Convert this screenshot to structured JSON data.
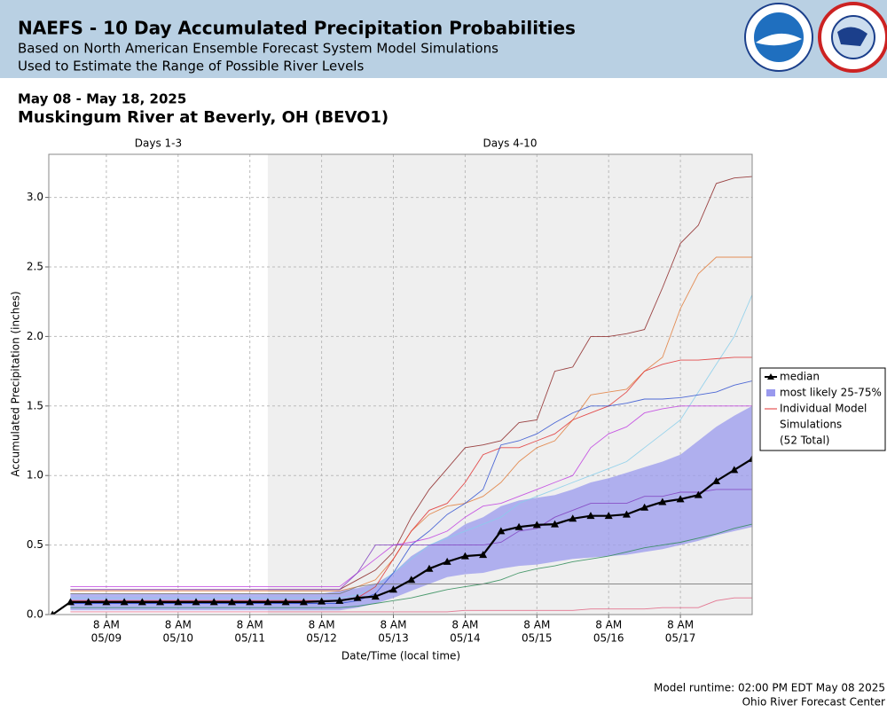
{
  "chart_data": {
    "type": "line",
    "title": "NAEFS - 10 Day Accumulated Precipitation Probabilities",
    "subtitle": [
      "Based on North American Ensemble Forecast System Model Simulations",
      "Used to Estimate the Range of Possible River Levels"
    ],
    "date_range": "May 08 - May 18, 2025",
    "location": "Muskingum River at Beverly, OH (BEVO1)",
    "periods": [
      {
        "label": "Days 1-3",
        "start": "2025-05-08T12:45",
        "end": "2025-05-11T14:00"
      },
      {
        "label": "Days 4-10",
        "start": "2025-05-11T14:00",
        "end": "2025-05-18T08:00",
        "shaded": true
      }
    ],
    "x_label": "Date/Time (local time)",
    "y_label": "Accumulated Precipitation (inches)",
    "xlim": [
      "2025-05-08T12:45",
      "2025-05-18T08:00"
    ],
    "xticks": [
      {
        "value": "2025-05-09T08:00",
        "label": "8 AM",
        "date": "05/09"
      },
      {
        "value": "2025-05-10T08:00",
        "label": "8 AM",
        "date": "05/10"
      },
      {
        "value": "2025-05-11T08:00",
        "label": "8 AM",
        "date": "05/11"
      },
      {
        "value": "2025-05-12T08:00",
        "label": "8 AM",
        "date": "05/12"
      },
      {
        "value": "2025-05-13T08:00",
        "label": "8 AM",
        "date": "05/13"
      },
      {
        "value": "2025-05-14T08:00",
        "label": "8 AM",
        "date": "05/14"
      },
      {
        "value": "2025-05-15T08:00",
        "label": "8 AM",
        "date": "05/15"
      },
      {
        "value": "2025-05-16T08:00",
        "label": "8 AM",
        "date": "05/16"
      },
      {
        "value": "2025-05-17T08:00",
        "label": "8 AM",
        "date": "05/17"
      }
    ],
    "ylim": [
      0,
      3.31
    ],
    "yticks": [
      {
        "value": 0,
        "label": "0.0"
      },
      0.5,
      {
        "value": 1,
        "label": "1.0"
      },
      1.5,
      {
        "value": 2,
        "label": "2.0"
      },
      2.5,
      {
        "value": 3,
        "label": "3.0"
      }
    ],
    "grid": true,
    "x": [
      "2025-05-08T14:00",
      "2025-05-08T20:00",
      "2025-05-09T02:00",
      "2025-05-09T08:00",
      "2025-05-09T14:00",
      "2025-05-09T20:00",
      "2025-05-10T02:00",
      "2025-05-10T08:00",
      "2025-05-10T14:00",
      "2025-05-10T20:00",
      "2025-05-11T02:00",
      "2025-05-11T08:00",
      "2025-05-11T14:00",
      "2025-05-11T20:00",
      "2025-05-12T02:00",
      "2025-05-12T08:00",
      "2025-05-12T14:00",
      "2025-05-12T20:00",
      "2025-05-13T02:00",
      "2025-05-13T08:00",
      "2025-05-13T14:00",
      "2025-05-13T20:00",
      "2025-05-14T02:00",
      "2025-05-14T08:00",
      "2025-05-14T14:00",
      "2025-05-14T20:00",
      "2025-05-15T02:00",
      "2025-05-15T08:00",
      "2025-05-15T14:00",
      "2025-05-15T20:00",
      "2025-05-16T02:00",
      "2025-05-16T08:00",
      "2025-05-16T14:00",
      "2025-05-16T20:00",
      "2025-05-17T02:00",
      "2025-05-17T08:00",
      "2025-05-17T14:00",
      "2025-05-17T20:00",
      "2025-05-18T02:00",
      "2025-05-18T08:00"
    ],
    "series": [
      {
        "name": "median",
        "color": "#000000",
        "values": [
          0,
          0.09,
          0.09,
          0.09,
          0.09,
          0.09,
          0.09,
          0.09,
          0.09,
          0.09,
          0.09,
          0.09,
          0.09,
          0.09,
          0.09,
          0.095,
          0.1,
          0.12,
          0.13,
          0.18,
          0.25,
          0.33,
          0.38,
          0.42,
          0.43,
          0.6,
          0.63,
          0.645,
          0.65,
          0.69,
          0.71,
          0.71,
          0.72,
          0.77,
          0.81,
          0.83,
          0.86,
          0.96,
          1.04,
          1.12
        ]
      }
    ],
    "band": {
      "name": "most likely 25-75%",
      "color": "#9999ee",
      "lower": [
        null,
        0.03,
        0.03,
        0.03,
        0.03,
        0.03,
        0.03,
        0.03,
        0.03,
        0.03,
        0.03,
        0.03,
        0.03,
        0.03,
        0.03,
        0.03,
        0.03,
        0.05,
        0.08,
        0.12,
        0.17,
        0.22,
        0.27,
        0.29,
        0.3,
        0.33,
        0.35,
        0.36,
        0.38,
        0.4,
        0.41,
        0.42,
        0.43,
        0.45,
        0.47,
        0.5,
        0.53,
        0.57,
        0.6,
        0.63
      ],
      "upper": [
        null,
        0.15,
        0.15,
        0.15,
        0.15,
        0.15,
        0.15,
        0.15,
        0.15,
        0.15,
        0.15,
        0.15,
        0.15,
        0.15,
        0.15,
        0.15,
        0.17,
        0.19,
        0.22,
        0.3,
        0.42,
        0.5,
        0.56,
        0.65,
        0.7,
        0.78,
        0.82,
        0.84,
        0.86,
        0.9,
        0.95,
        0.98,
        1.02,
        1.06,
        1.1,
        1.15,
        1.25,
        1.35,
        1.43,
        1.5
      ]
    },
    "simulations_label": [
      "Individual Model",
      "Simulations",
      "(52 Total)"
    ],
    "simulations": [
      {
        "color": "#8b2323",
        "values": [
          null,
          0.18,
          0.18,
          0.18,
          0.18,
          0.18,
          0.18,
          0.18,
          0.18,
          0.18,
          0.18,
          0.18,
          0.18,
          0.18,
          0.18,
          0.18,
          0.18,
          0.25,
          0.32,
          0.45,
          0.7,
          0.9,
          1.05,
          1.2,
          1.22,
          1.25,
          1.38,
          1.4,
          1.75,
          1.78,
          2.0,
          2.0,
          2.02,
          2.05,
          2.35,
          2.67,
          2.8,
          3.1,
          3.14,
          3.15
        ]
      },
      {
        "color": "#e07b39",
        "values": [
          null,
          0.17,
          0.17,
          0.17,
          0.17,
          0.17,
          0.17,
          0.17,
          0.17,
          0.17,
          0.17,
          0.17,
          0.17,
          0.17,
          0.17,
          0.17,
          0.17,
          0.2,
          0.25,
          0.4,
          0.6,
          0.72,
          0.78,
          0.8,
          0.85,
          0.95,
          1.1,
          1.2,
          1.25,
          1.4,
          1.58,
          1.6,
          1.62,
          1.75,
          1.85,
          2.2,
          2.45,
          2.57,
          2.57,
          2.57
        ]
      },
      {
        "color": "#87ceeb",
        "values": [
          null,
          0.12,
          0.12,
          0.12,
          0.12,
          0.12,
          0.12,
          0.12,
          0.12,
          0.12,
          0.12,
          0.12,
          0.12,
          0.12,
          0.12,
          0.12,
          0.12,
          0.14,
          0.2,
          0.3,
          0.4,
          0.5,
          0.55,
          0.6,
          0.65,
          0.7,
          0.8,
          0.85,
          0.9,
          0.95,
          1.0,
          1.05,
          1.1,
          1.2,
          1.3,
          1.4,
          1.6,
          1.8,
          2.0,
          2.3
        ]
      },
      {
        "color": "#e03030",
        "values": [
          null,
          0.1,
          0.1,
          0.1,
          0.1,
          0.1,
          0.1,
          0.1,
          0.1,
          0.1,
          0.1,
          0.1,
          0.1,
          0.1,
          0.1,
          0.1,
          0.1,
          0.12,
          0.2,
          0.4,
          0.6,
          0.75,
          0.8,
          0.95,
          1.15,
          1.2,
          1.2,
          1.25,
          1.3,
          1.4,
          1.45,
          1.5,
          1.6,
          1.75,
          1.8,
          1.83,
          1.83,
          1.84,
          1.85,
          1.85
        ]
      },
      {
        "color": "#3050d0",
        "values": [
          null,
          0.08,
          0.08,
          0.08,
          0.08,
          0.08,
          0.08,
          0.08,
          0.08,
          0.08,
          0.08,
          0.08,
          0.08,
          0.08,
          0.08,
          0.08,
          0.08,
          0.1,
          0.15,
          0.3,
          0.5,
          0.6,
          0.72,
          0.8,
          0.9,
          1.22,
          1.25,
          1.3,
          1.38,
          1.45,
          1.5,
          1.5,
          1.52,
          1.55,
          1.55,
          1.56,
          1.58,
          1.6,
          1.65,
          1.68
        ]
      },
      {
        "color": "#c040e0",
        "values": [
          null,
          0.2,
          0.2,
          0.2,
          0.2,
          0.2,
          0.2,
          0.2,
          0.2,
          0.2,
          0.2,
          0.2,
          0.2,
          0.2,
          0.2,
          0.2,
          0.2,
          0.3,
          0.4,
          0.5,
          0.52,
          0.55,
          0.6,
          0.7,
          0.78,
          0.8,
          0.85,
          0.9,
          0.95,
          1.0,
          1.2,
          1.3,
          1.35,
          1.45,
          1.48,
          1.5,
          1.5,
          1.5,
          1.5,
          1.5
        ]
      },
      {
        "color": "#2e8b57",
        "values": [
          null,
          0.05,
          0.05,
          0.05,
          0.05,
          0.05,
          0.05,
          0.05,
          0.05,
          0.05,
          0.05,
          0.05,
          0.05,
          0.05,
          0.05,
          0.05,
          0.05,
          0.06,
          0.08,
          0.1,
          0.12,
          0.15,
          0.18,
          0.2,
          0.22,
          0.25,
          0.3,
          0.33,
          0.35,
          0.38,
          0.4,
          0.42,
          0.45,
          0.48,
          0.5,
          0.52,
          0.55,
          0.58,
          0.62,
          0.65
        ]
      },
      {
        "color": "#e06080",
        "values": [
          null,
          0.02,
          0.02,
          0.02,
          0.02,
          0.02,
          0.02,
          0.02,
          0.02,
          0.02,
          0.02,
          0.02,
          0.02,
          0.02,
          0.02,
          0.02,
          0.02,
          0.02,
          0.02,
          0.02,
          0.02,
          0.02,
          0.02,
          0.03,
          0.03,
          0.03,
          0.03,
          0.03,
          0.03,
          0.03,
          0.04,
          0.04,
          0.04,
          0.04,
          0.05,
          0.05,
          0.05,
          0.1,
          0.12,
          0.12
        ]
      },
      {
        "color": "#777777",
        "values": [
          null,
          0.15,
          0.15,
          0.15,
          0.15,
          0.15,
          0.15,
          0.15,
          0.15,
          0.15,
          0.15,
          0.15,
          0.15,
          0.15,
          0.15,
          0.15,
          0.15,
          0.2,
          0.22,
          0.22,
          0.22,
          0.22,
          0.22,
          0.22,
          0.22,
          0.22,
          0.22,
          0.22,
          0.22,
          0.22,
          0.22,
          0.22,
          0.22,
          0.22,
          0.22,
          0.22,
          0.22,
          0.22,
          0.22,
          0.22
        ]
      },
      {
        "color": "#8040c0",
        "values": [
          null,
          0.18,
          0.18,
          0.18,
          0.18,
          0.18,
          0.18,
          0.18,
          0.18,
          0.18,
          0.18,
          0.18,
          0.18,
          0.18,
          0.18,
          0.18,
          0.18,
          0.3,
          0.5,
          0.5,
          0.5,
          0.5,
          0.5,
          0.5,
          0.5,
          0.52,
          0.6,
          0.62,
          0.7,
          0.75,
          0.8,
          0.8,
          0.8,
          0.85,
          0.85,
          0.88,
          0.88,
          0.9,
          0.9,
          0.9
        ]
      }
    ],
    "footer": [
      "Model runtime: 02:00 PM EDT May 08 2025",
      "Ohio River Forecast Center"
    ]
  }
}
